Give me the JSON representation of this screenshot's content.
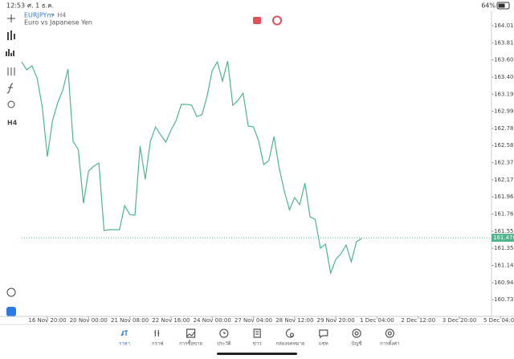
{
  "status_bar": {
    "time": "12:53",
    "date": "ศ. 1 ธ.ค.",
    "battery": "64%"
  },
  "symbol": {
    "name": "EURJPYm",
    "timeframe": "• H4",
    "description": "Euro vs Japanese Yen"
  },
  "chart_data": {
    "type": "line",
    "x": [
      0,
      1,
      2,
      3,
      4,
      5,
      6,
      7,
      8,
      9,
      10,
      11,
      12,
      13,
      14,
      15,
      16,
      17,
      18,
      19,
      20,
      21,
      22,
      23,
      24,
      25,
      26,
      27,
      28,
      29,
      30,
      31,
      32,
      33,
      34,
      35,
      36,
      37,
      38,
      39,
      40,
      41,
      42,
      43,
      44,
      45,
      46,
      47,
      48,
      49,
      50,
      51,
      52,
      53,
      54,
      55,
      56,
      57,
      58,
      59,
      60,
      61,
      62,
      63,
      64,
      65,
      66
    ],
    "series": [
      {
        "color": "#4fb58c",
        "values": [
          163.582,
          163.486,
          163.534,
          163.39,
          163.044,
          162.448,
          162.88,
          163.092,
          163.246,
          163.496,
          162.63,
          162.534,
          161.89,
          162.275,
          162.332,
          162.371,
          161.563,
          161.573,
          161.573,
          161.573,
          161.861,
          161.755,
          161.746,
          162.573,
          162.178,
          162.63,
          162.803,
          162.707,
          162.621,
          162.765,
          162.88,
          163.073,
          163.073,
          163.063,
          162.928,
          162.948,
          163.169,
          163.477,
          163.582,
          163.352,
          163.592,
          163.063,
          163.121,
          163.207,
          162.813,
          162.803,
          162.64,
          162.352,
          162.4,
          162.688,
          162.313,
          162.034,
          161.813,
          161.957,
          161.871,
          162.13,
          161.727,
          161.698,
          161.352,
          161.4,
          161.053,
          161.217,
          161.284,
          161.39,
          161.188,
          161.428,
          161.467
        ]
      }
    ],
    "xlim": [
      -4.2,
      95.6
    ],
    "xticks": [
      {
        "value": 5,
        "label": "16 Nov 20:00"
      },
      {
        "value": 13,
        "label": "20 Nov 00:00"
      },
      {
        "value": 21,
        "label": "21 Nov 08:00"
      },
      {
        "value": 29,
        "label": "22 Nov 16:00"
      },
      {
        "value": 37,
        "label": "24 Nov 00:00"
      },
      {
        "value": 45,
        "label": "27 Nov 04:00"
      },
      {
        "value": 53,
        "label": "28 Nov 12:00"
      },
      {
        "value": 61,
        "label": "29 Nov 20:00"
      },
      {
        "value": 69,
        "label": "1 Dec 04:00"
      },
      {
        "value": 77,
        "label": "2 Dec 12:00"
      },
      {
        "value": 85,
        "label": "3 Dec 20:00"
      },
      {
        "value": 93,
        "label": "5 Dec 04:00"
      }
    ],
    "ylim": [
      160.544,
      164.188
    ],
    "yticks": [
      164.015,
      {
        "value": 163.81,
        "label": "163.810"
      },
      163.605,
      {
        "value": 163.4,
        "label": "163.400"
      },
      163.195,
      {
        "value": 162.99,
        "label": "162.990"
      },
      162.785,
      {
        "value": 162.58,
        "label": "162.580"
      },
      162.375,
      {
        "value": 162.17,
        "label": "162.170"
      },
      161.965,
      {
        "value": 161.76,
        "label": "161.760"
      },
      161.555,
      {
        "value": 161.35,
        "label": "161.350"
      },
      161.145,
      {
        "value": 160.94,
        "label": "160.940"
      },
      160.735
    ],
    "price_line": 161.476,
    "grid": false
  },
  "nav": [
    "ราคา",
    "กราฟ",
    "การซื้อขาย",
    "ประวัติ",
    "ข่าว",
    "กล่องจดหมาย",
    "แชท",
    "บัญชี",
    "การตั้งค่า"
  ]
}
